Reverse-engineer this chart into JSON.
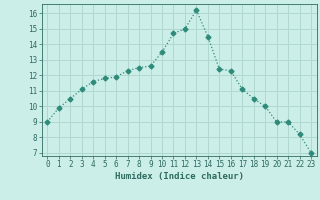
{
  "x": [
    0,
    1,
    2,
    3,
    4,
    5,
    6,
    7,
    8,
    9,
    10,
    11,
    12,
    13,
    14,
    15,
    16,
    17,
    18,
    19,
    20,
    21,
    22,
    23
  ],
  "y": [
    9,
    9.9,
    10.5,
    11.1,
    11.6,
    11.8,
    11.9,
    12.3,
    12.5,
    12.6,
    13.5,
    14.7,
    15.0,
    16.2,
    14.5,
    12.4,
    12.3,
    11.1,
    10.5,
    10.0,
    9.0,
    9.0,
    8.2,
    7.0
  ],
  "line_color": "#2e8b7a",
  "marker": "D",
  "marker_size": 2.5,
  "bg_color": "#cceee8",
  "grid_color": "#b0d8d0",
  "xlabel": "Humidex (Indice chaleur)",
  "xlim": [
    -0.5,
    23.5
  ],
  "ylim": [
    6.8,
    16.6
  ],
  "yticks": [
    7,
    8,
    9,
    10,
    11,
    12,
    13,
    14,
    15,
    16
  ],
  "xticks": [
    0,
    1,
    2,
    3,
    4,
    5,
    6,
    7,
    8,
    9,
    10,
    11,
    12,
    13,
    14,
    15,
    16,
    17,
    18,
    19,
    20,
    21,
    22,
    23
  ],
  "tick_color": "#2e6b60",
  "label_fontsize": 6.5,
  "tick_fontsize": 5.5
}
